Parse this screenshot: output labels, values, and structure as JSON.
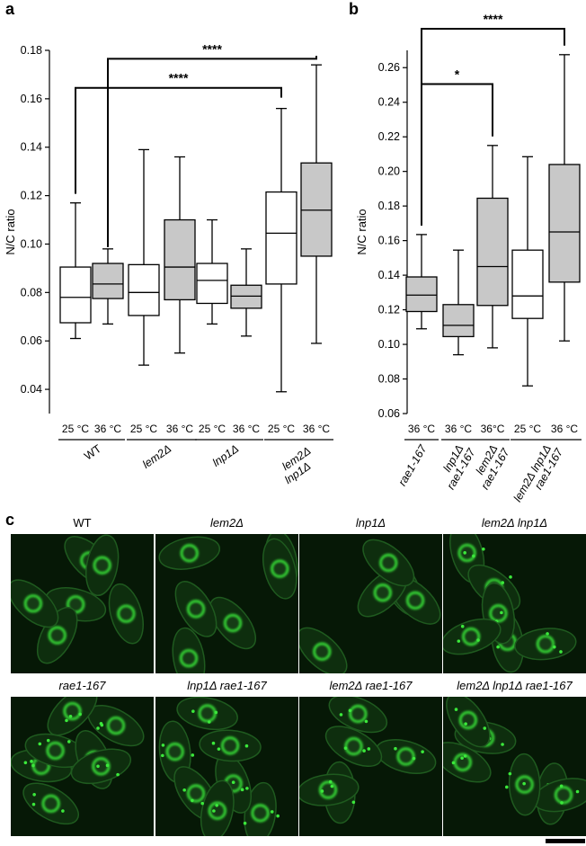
{
  "chart_data": [
    {
      "panel": "a",
      "type": "box",
      "ylabel": "N/C ratio",
      "ylim": [
        0.03,
        0.18
      ],
      "yticks": [
        "0.04",
        "0.06",
        "0.08",
        "0.10",
        "0.12",
        "0.14",
        "0.16",
        "0.18"
      ],
      "boxes": [
        {
          "label": "25 °C",
          "fill": "#ffffff",
          "min": 0.061,
          "q1": 0.0675,
          "median": 0.078,
          "q3": 0.0905,
          "max": 0.117
        },
        {
          "label": "36 °C",
          "fill": "#c8c8c8",
          "min": 0.067,
          "q1": 0.0775,
          "median": 0.0835,
          "q3": 0.092,
          "max": 0.098
        },
        {
          "label": "25 °C",
          "fill": "#ffffff",
          "min": 0.05,
          "q1": 0.0705,
          "median": 0.08,
          "q3": 0.0915,
          "max": 0.139
        },
        {
          "label": "36 °C",
          "fill": "#c8c8c8",
          "min": 0.055,
          "q1": 0.077,
          "median": 0.0905,
          "q3": 0.11,
          "max": 0.136
        },
        {
          "label": "25 °C",
          "fill": "#ffffff",
          "min": 0.067,
          "q1": 0.0755,
          "median": 0.085,
          "q3": 0.092,
          "max": 0.11
        },
        {
          "label": "36 °C",
          "fill": "#c8c8c8",
          "min": 0.062,
          "q1": 0.0735,
          "median": 0.0785,
          "q3": 0.083,
          "max": 0.098
        },
        {
          "label": "25 °C",
          "fill": "#ffffff",
          "min": 0.039,
          "q1": 0.0835,
          "median": 0.1045,
          "q3": 0.1215,
          "max": 0.156
        },
        {
          "label": "36 °C",
          "fill": "#c8c8c8",
          "min": 0.059,
          "q1": 0.095,
          "median": 0.114,
          "q3": 0.1335,
          "max": 0.174
        }
      ],
      "groups": [
        {
          "label": "WT",
          "from": 0,
          "to": 1
        },
        {
          "label": "lem2Δ",
          "from": 2,
          "to": 3
        },
        {
          "label": "lnp1Δ",
          "from": 4,
          "to": 5
        },
        {
          "label": "lem2Δ\nlnp1Δ",
          "from": 6,
          "to": 7
        }
      ],
      "significance": [
        {
          "from": 1,
          "to": 7,
          "label": "****",
          "level": 0.1765
        },
        {
          "from": 0,
          "to": 6,
          "label": "****",
          "level": 0.1645
        }
      ]
    },
    {
      "panel": "b",
      "type": "box",
      "ylabel": "N/C ratio",
      "ylim": [
        0.06,
        0.27
      ],
      "yticks": [
        "0.06",
        "0.08",
        "0.10",
        "0.12",
        "0.14",
        "0.16",
        "0.18",
        "0.20",
        "0.22",
        "0.24",
        "0.26"
      ],
      "boxes": [
        {
          "label": "36 °C",
          "fill": "#c8c8c8",
          "min": 0.109,
          "q1": 0.119,
          "median": 0.1285,
          "q3": 0.139,
          "max": 0.1635
        },
        {
          "label": "36 °C",
          "fill": "#c8c8c8",
          "min": 0.094,
          "q1": 0.1045,
          "median": 0.111,
          "q3": 0.123,
          "max": 0.1545
        },
        {
          "label": "36°C",
          "fill": "#c8c8c8",
          "min": 0.098,
          "q1": 0.1225,
          "median": 0.145,
          "q3": 0.1845,
          "max": 0.215
        },
        {
          "label": "25 °C",
          "fill": "#ffffff",
          "min": 0.076,
          "q1": 0.115,
          "median": 0.128,
          "q3": 0.1545,
          "max": 0.2085
        },
        {
          "label": "36 °C",
          "fill": "#c8c8c8",
          "min": 0.102,
          "q1": 0.136,
          "median": 0.165,
          "q3": 0.204,
          "max": 0.2675
        }
      ],
      "groups": [
        {
          "label": "rae1-167",
          "from": 0,
          "to": 0
        },
        {
          "label": "lnp1Δ\nrae1-167",
          "from": 1,
          "to": 1
        },
        {
          "label": "lem2Δ\nrae1-167",
          "from": 2,
          "to": 2
        },
        {
          "label": "lem2Δ lnp1Δ\nrae1-167",
          "from": 3,
          "to": 4
        }
      ],
      "significance": [
        {
          "from": 0,
          "to": 4,
          "label": "****",
          "level": 0.2825
        },
        {
          "from": 0,
          "to": 2,
          "label": "*",
          "level": 0.2505
        }
      ]
    }
  ],
  "panel_c": {
    "letter": "c",
    "images": [
      {
        "title": "WT",
        "italic": false
      },
      {
        "title": "lem2Δ",
        "italic": true
      },
      {
        "title": "lnp1Δ",
        "italic": true
      },
      {
        "title": "lem2Δ lnp1Δ",
        "italic": true
      },
      {
        "title": "rae1-167",
        "italic": true
      },
      {
        "title": "lnp1Δ rae1-167",
        "italic": true
      },
      {
        "title": "lem2Δ rae1-167",
        "italic": true
      },
      {
        "title": "lem2Δ lnp1Δ rae1-167",
        "italic": true
      }
    ],
    "colors": {
      "background": "#061806",
      "signal": "#3be83b"
    }
  }
}
